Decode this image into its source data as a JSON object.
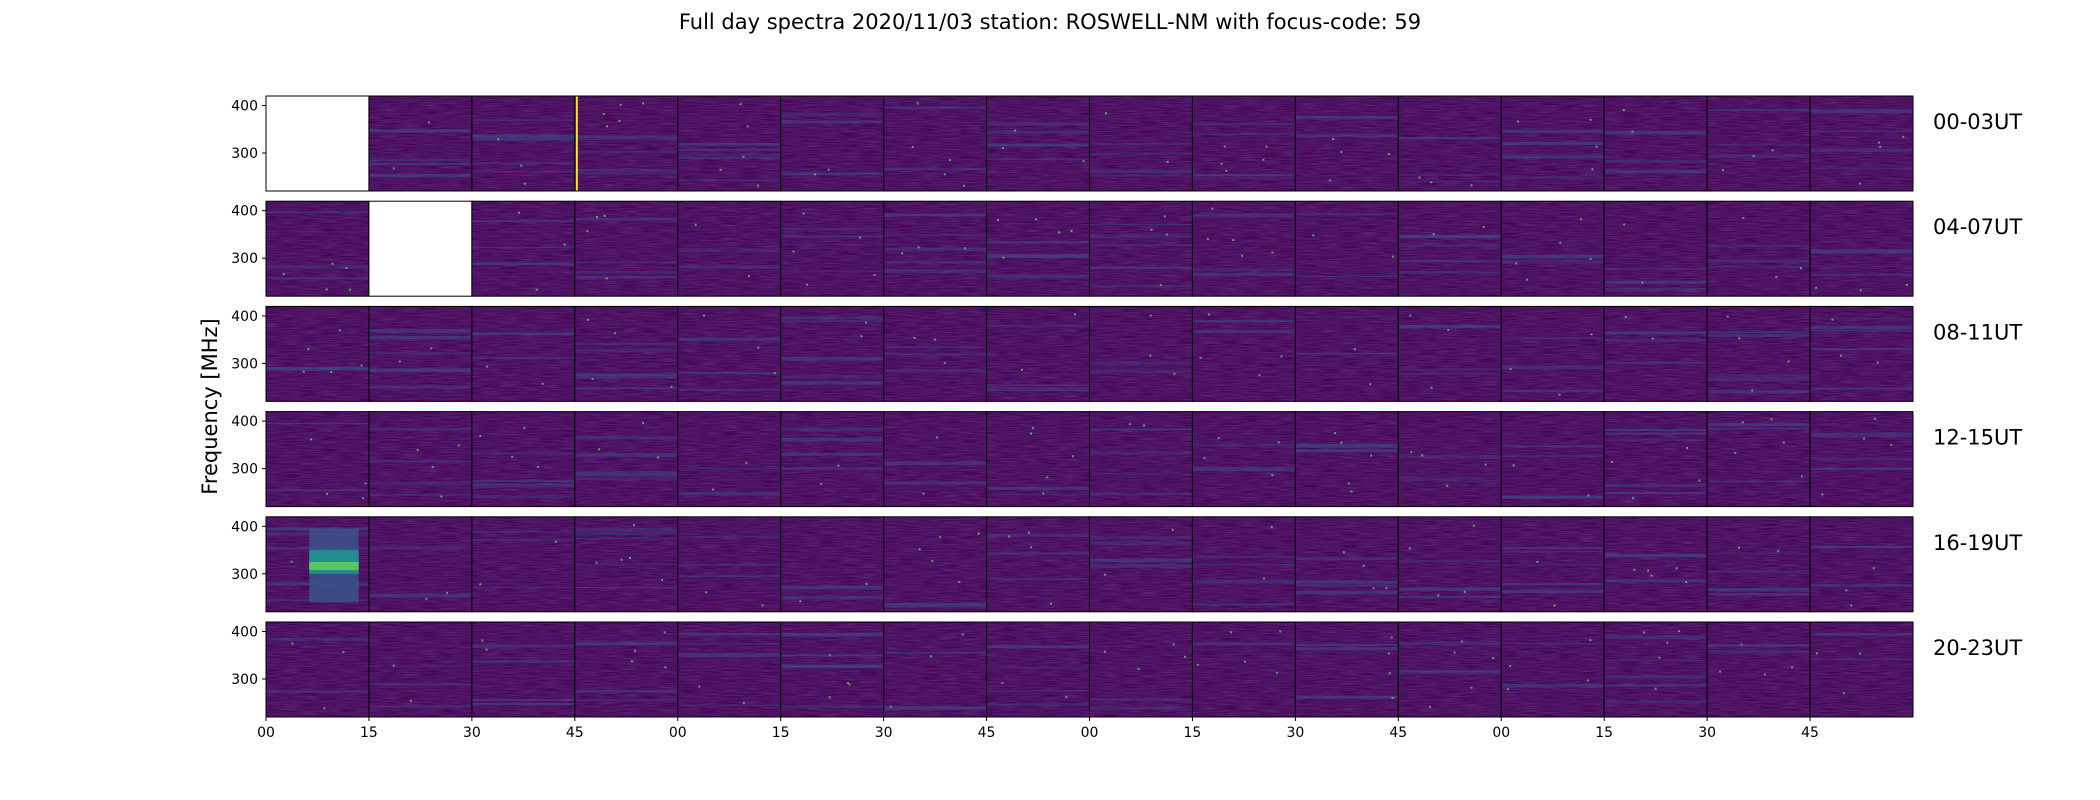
{
  "title": "Full day spectra 2020/11/03 station: ROSWELL-NM with focus-code: 59",
  "chart_data": {
    "type": "heatmap",
    "title": "Full day spectra 2020/11/03 station: ROSWELL-NM with focus-code: 59",
    "ylabel": "Frequency [MHz]",
    "yticks": [
      "400",
      "300"
    ],
    "ylim": [
      220,
      420
    ],
    "xticks": [
      "00",
      "15",
      "30",
      "45",
      "00",
      "15",
      "30",
      "45",
      "00",
      "15",
      "30",
      "45",
      "00",
      "15",
      "30",
      "45"
    ],
    "row_labels": [
      "00-03UT",
      "04-07UT",
      "08-11UT",
      "12-15UT",
      "16-19UT",
      "20-23UT"
    ],
    "panels_per_row": 16,
    "colormap": "viridis",
    "empty_panels": [
      {
        "row": 0,
        "col": 0
      },
      {
        "row": 1,
        "col": 1
      }
    ],
    "notable_features": [
      {
        "row": 0,
        "col": 3,
        "description": "yellow vertical line"
      },
      {
        "row": 4,
        "col": 0,
        "description": "bright green broadband burst"
      }
    ]
  },
  "colors": {
    "background": "#440154",
    "mid": "#3b528b",
    "teal": "#21918c",
    "green": "#5ec962",
    "yellow": "#fde725"
  }
}
